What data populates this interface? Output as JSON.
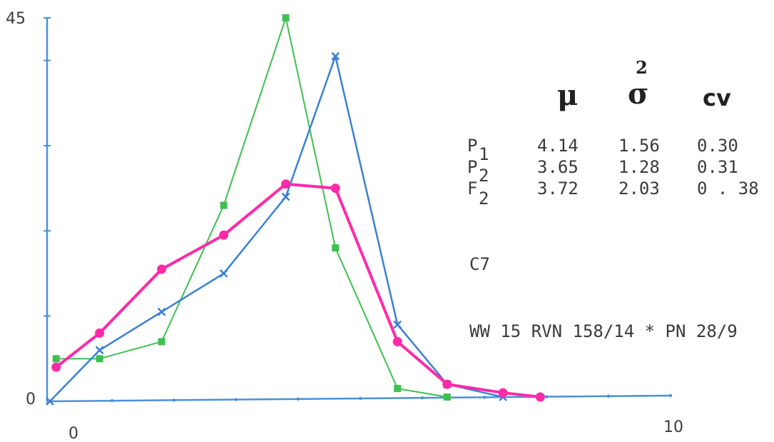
{
  "chart_data": {
    "type": "line",
    "x_axis": {
      "min": 0,
      "max": 10,
      "tick_labels": [
        "0",
        "10"
      ]
    },
    "y_axis": {
      "min": 0,
      "max": 45,
      "tick_labels": [
        "0",
        "45"
      ]
    },
    "grid": false,
    "series": [
      {
        "marker": "x",
        "color": "#3b7fd4",
        "points": [
          [
            0,
            0
          ],
          [
            0.8,
            6
          ],
          [
            1.8,
            10.5
          ],
          [
            2.8,
            15
          ],
          [
            3.8,
            24
          ],
          [
            4.6,
            40.5
          ],
          [
            5.6,
            9
          ],
          [
            6.4,
            2
          ],
          [
            7.3,
            0.5
          ]
        ]
      },
      {
        "marker": "square",
        "color": "#3fbf52",
        "points": [
          [
            0.1,
            5
          ],
          [
            0.8,
            5
          ],
          [
            1.8,
            7
          ],
          [
            2.8,
            23
          ],
          [
            3.8,
            45
          ],
          [
            4.6,
            18
          ],
          [
            5.6,
            1.5
          ],
          [
            6.4,
            0.5
          ]
        ]
      },
      {
        "marker": "circle",
        "color": "#ff2aa8",
        "points": [
          [
            0.1,
            4
          ],
          [
            0.8,
            8
          ],
          [
            1.8,
            15.5
          ],
          [
            2.8,
            19.5
          ],
          [
            3.8,
            25.5
          ],
          [
            4.6,
            25
          ],
          [
            5.6,
            7
          ],
          [
            6.4,
            2
          ],
          [
            7.3,
            1
          ],
          [
            7.9,
            0.5
          ]
        ]
      }
    ]
  },
  "stats_table": {
    "headers": {
      "mu": "μ",
      "sigma": "σ",
      "sigma_sup": "2",
      "cv": "cv"
    },
    "rows": [
      {
        "name": "P",
        "sub": "1",
        "mu": "4.14",
        "sigma2": "1.56",
        "cv": "0.30"
      },
      {
        "name": "P",
        "sub": "2",
        "mu": "3.65",
        "sigma2": "1.28",
        "cv": "0.31"
      },
      {
        "name": "F",
        "sub": "2",
        "mu": "3.72",
        "sigma2": "2.03",
        "cv": "0 . 38"
      }
    ]
  },
  "notes": {
    "code": "C7",
    "cross": "WW 15 RVN 158/14 * PN 28/9"
  }
}
